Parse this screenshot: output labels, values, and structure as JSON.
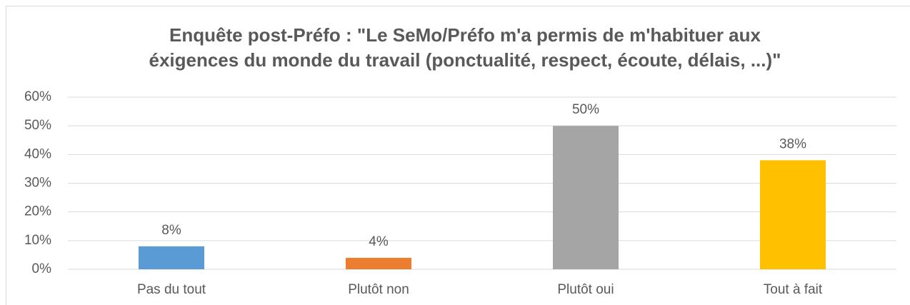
{
  "chart_data": {
    "type": "bar",
    "title": [
      "Enquête post-Préfo : \"Le SeMo/Préfo m'a permis de m'habituer aux",
      "éxigences du monde du travail (ponctualité, respect, écoute, délais, ...)\""
    ],
    "categories": [
      "Pas du tout",
      "Plutôt non",
      "Plutôt oui",
      "Tout à fait"
    ],
    "values": [
      8,
      4,
      50,
      38
    ],
    "value_labels": [
      "8%",
      "4%",
      "50%",
      "38%"
    ],
    "colors": [
      "#5b9bd5",
      "#ed7d31",
      "#a5a5a5",
      "#ffc000"
    ],
    "ylim": [
      0,
      60
    ],
    "yticks": [
      {
        "value": 0,
        "label": "0%"
      },
      {
        "value": 10,
        "label": "10%"
      },
      {
        "value": 20,
        "label": "20%"
      },
      {
        "value": 30,
        "label": "30%"
      },
      {
        "value": 40,
        "label": "40%"
      },
      {
        "value": 50,
        "label": "50%"
      },
      {
        "value": 60,
        "label": "60%"
      }
    ],
    "grid": true
  }
}
